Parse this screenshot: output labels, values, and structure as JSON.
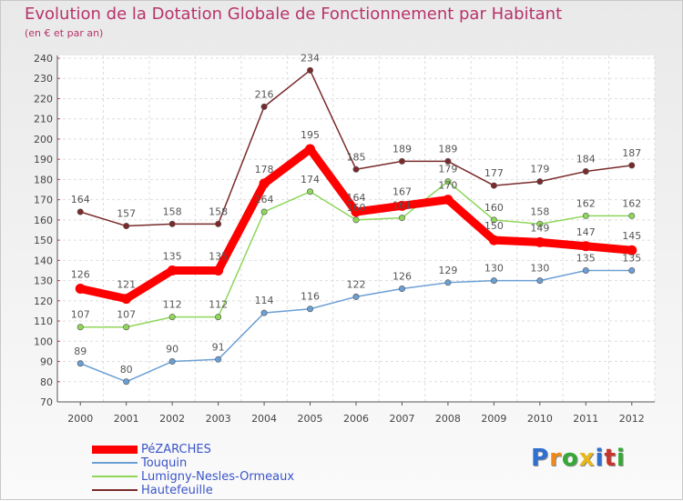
{
  "header": {
    "title": "Evolution de la Dotation Globale de Fonctionnement par Habitant",
    "subtitle": "(en € et par an)"
  },
  "logo": {
    "text": "Proxiti",
    "letter_colors": [
      "#2f6fd0",
      "#ef8a1a",
      "#36a836",
      "#e8b81b",
      "#2f6fd0",
      "#c7342c",
      "#36a836"
    ]
  },
  "chart_data": {
    "type": "line",
    "title": "Evolution de la Dotation Globale de Fonctionnement par Habitant",
    "subtitle": "(en € et par an)",
    "xlabel": "",
    "ylabel": "",
    "x": [
      "2000",
      "2001",
      "2002",
      "2003",
      "2004",
      "2005",
      "2006",
      "2007",
      "2008",
      "2009",
      "2010",
      "2011",
      "2012"
    ],
    "yticks": [
      "70",
      "80",
      "90",
      "100",
      "110",
      "120",
      "130",
      "140",
      "150",
      "160",
      "170",
      "180",
      "190",
      "200",
      "210",
      "220",
      "230",
      "240"
    ],
    "ylim": [
      70,
      240
    ],
    "grid": true,
    "legend_position": "bottom-left",
    "series": [
      {
        "name": "PéZARCHES",
        "color": "#ff0000",
        "values": [
          126,
          121,
          135,
          135,
          178,
          195,
          164,
          167,
          170,
          150,
          149,
          147,
          145
        ],
        "labels": [
          "126",
          "121",
          "135",
          "135",
          "178",
          "195",
          "164",
          "167",
          "170",
          "150",
          "149",
          "147",
          "145"
        ]
      },
      {
        "name": "Touquin",
        "color": "#6b9fd4",
        "values": [
          89,
          80,
          90,
          91,
          114,
          116,
          122,
          126,
          129,
          130,
          130,
          135,
          135
        ],
        "labels": [
          "89",
          "80",
          "90",
          "91",
          "114",
          "116",
          "122",
          "126",
          "129",
          "130",
          "130",
          "135",
          "135"
        ]
      },
      {
        "name": "Lumigny-Nesles-Ormeaux",
        "color": "#8fd65a",
        "values": [
          107,
          107,
          112,
          112,
          164,
          174,
          160,
          161,
          179,
          160,
          158,
          162,
          162
        ],
        "labels": [
          "107",
          "107",
          "112",
          "112",
          "164",
          "174",
          "160",
          "161",
          "179",
          "160",
          "158",
          "162",
          "162"
        ]
      },
      {
        "name": "Hautefeuille",
        "color": "#7a2a2a",
        "values": [
          164,
          157,
          158,
          158,
          216,
          234,
          185,
          189,
          189,
          177,
          179,
          184,
          187
        ],
        "labels": [
          "164",
          "157",
          "158",
          "158",
          "216",
          "234",
          "185",
          "189",
          "189",
          "177",
          "179",
          "184",
          "187"
        ]
      }
    ]
  }
}
